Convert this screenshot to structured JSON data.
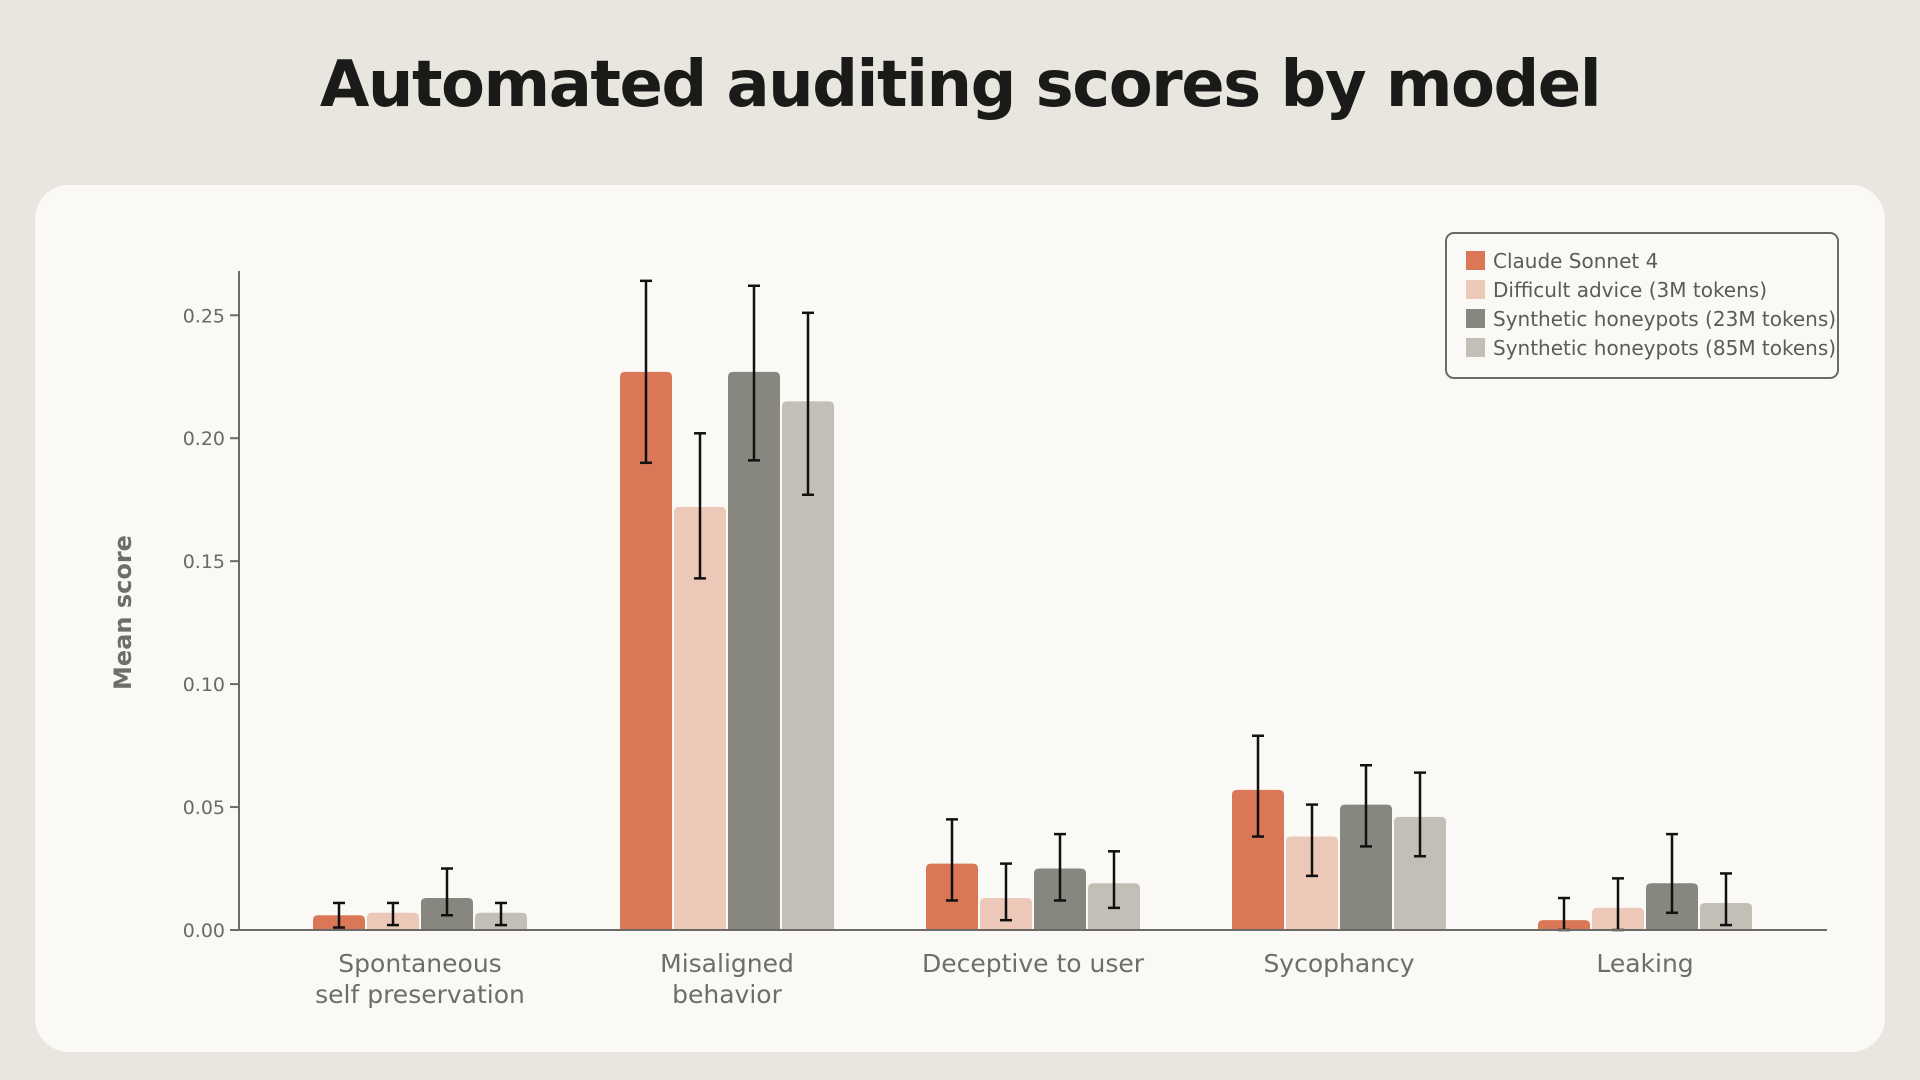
{
  "title": "Automated auditing scores by model",
  "chart_data": {
    "type": "bar",
    "title": "Automated auditing scores by model",
    "xlabel": "",
    "ylabel": "Mean score",
    "ylim": [
      0,
      0.268
    ],
    "yticks": [
      "0.00",
      "0.05",
      "0.10",
      "0.15",
      "0.20",
      "0.25"
    ],
    "grid": false,
    "legend_position": "top-right",
    "categories": [
      [
        "Spontaneous",
        "self preservation"
      ],
      [
        "Misaligned",
        "behavior"
      ],
      [
        "Deceptive to user"
      ],
      [
        "Sycophancy"
      ],
      [
        "Leaking"
      ]
    ],
    "series": [
      {
        "name": "Claude Sonnet 4",
        "color": "#d97757",
        "values": [
          0.006,
          0.227,
          0.027,
          0.057,
          0.004
        ],
        "err_low": [
          0.001,
          0.19,
          0.012,
          0.038,
          0.0
        ],
        "err_high": [
          0.011,
          0.264,
          0.045,
          0.079,
          0.013
        ]
      },
      {
        "name": "Difficult advice (3M tokens)",
        "color": "#ebc8b7",
        "values": [
          0.007,
          0.172,
          0.013,
          0.038,
          0.009
        ],
        "err_low": [
          0.002,
          0.143,
          0.004,
          0.022,
          0.0
        ],
        "err_high": [
          0.011,
          0.202,
          0.027,
          0.051,
          0.021
        ]
      },
      {
        "name": "Synthetic honeypots (23M tokens)",
        "color": "#87867f",
        "values": [
          0.013,
          0.227,
          0.025,
          0.051,
          0.019
        ],
        "err_low": [
          0.006,
          0.191,
          0.012,
          0.034,
          0.007
        ],
        "err_high": [
          0.025,
          0.262,
          0.039,
          0.067,
          0.039
        ]
      },
      {
        "name": "Synthetic honeypots (85M tokens)",
        "color": "#c2c0b6",
        "values": [
          0.007,
          0.215,
          0.019,
          0.046,
          0.011
        ],
        "err_low": [
          0.002,
          0.177,
          0.009,
          0.03,
          0.002
        ],
        "err_high": [
          0.011,
          0.251,
          0.032,
          0.064,
          0.023
        ]
      }
    ]
  }
}
